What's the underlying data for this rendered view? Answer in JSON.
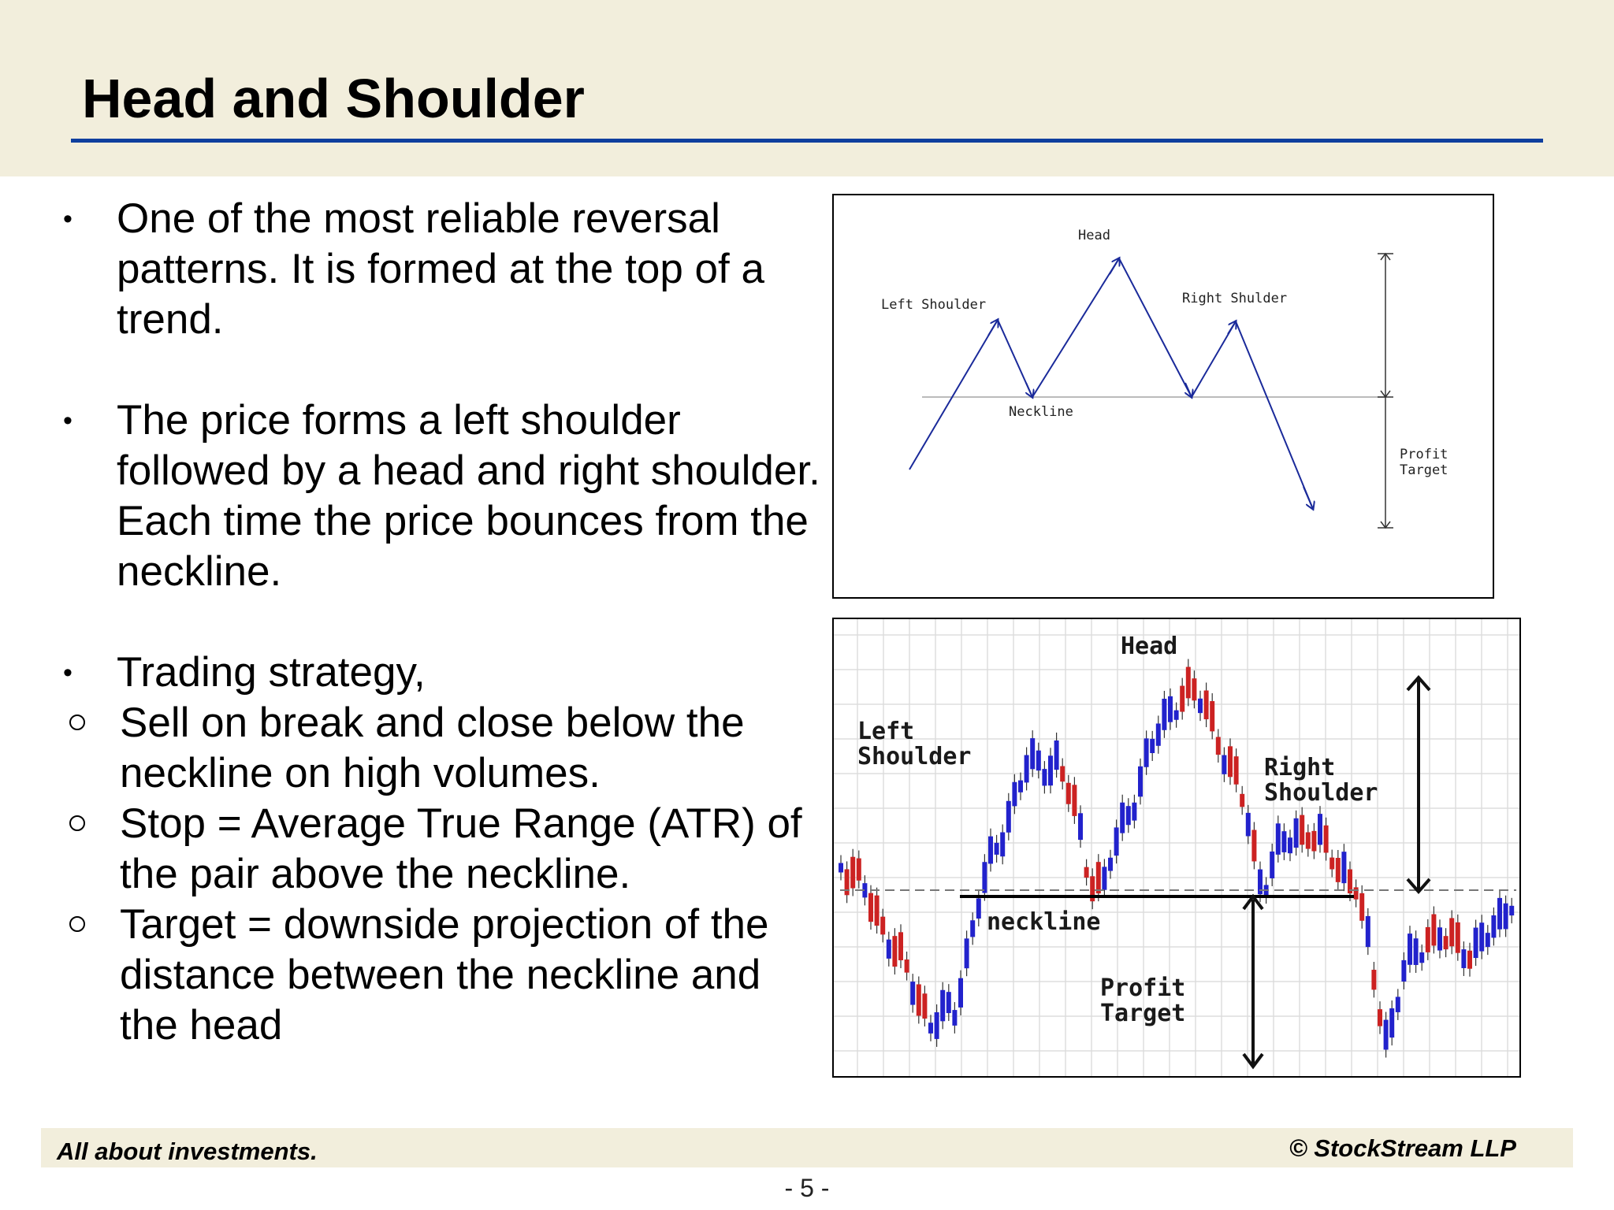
{
  "slide": {
    "title": "Head and Shoulder",
    "bullets": [
      "One of the most reliable reversal patterns. It is formed at the top of a trend.",
      "The price forms a left shoulder followed by a head and right shoulder. Each time the price bounces from the neckline.",
      "Trading strategy,"
    ],
    "sub_bullets": [
      "Sell on break and close below the neckline on high volumes.",
      "Stop = Average True Range (ATR) of the pair above the neckline.",
      "Target = downside projection of the distance between the neckline and the head"
    ]
  },
  "diagram_top": {
    "labels": {
      "head": "Head",
      "left_shoulder": "Left Shoulder",
      "right_shoulder": "Right Shulder",
      "neckline": "Neckline",
      "profit_line1": "Profit",
      "profit_line2": "Target"
    },
    "colors": {
      "line": "#1a2a9a",
      "neckline": "#bbbbbb",
      "measure": "#333333"
    }
  },
  "diagram_bottom": {
    "labels": {
      "head": "Head",
      "left_line1": "Left",
      "left_line2": "Shoulder",
      "right_line1": "Right",
      "right_line2": "Shoulder",
      "neckline": "neckline",
      "profit_line1": "Profit",
      "profit_line2": "Target"
    },
    "colors": {
      "up_candle": "#2222cc",
      "down_candle": "#cc2222",
      "grid": "#dddddd",
      "arrow": "#111111"
    }
  },
  "footer": {
    "left": "All about investments.",
    "right": "© StockStream LLP",
    "page": "- 5 -"
  }
}
